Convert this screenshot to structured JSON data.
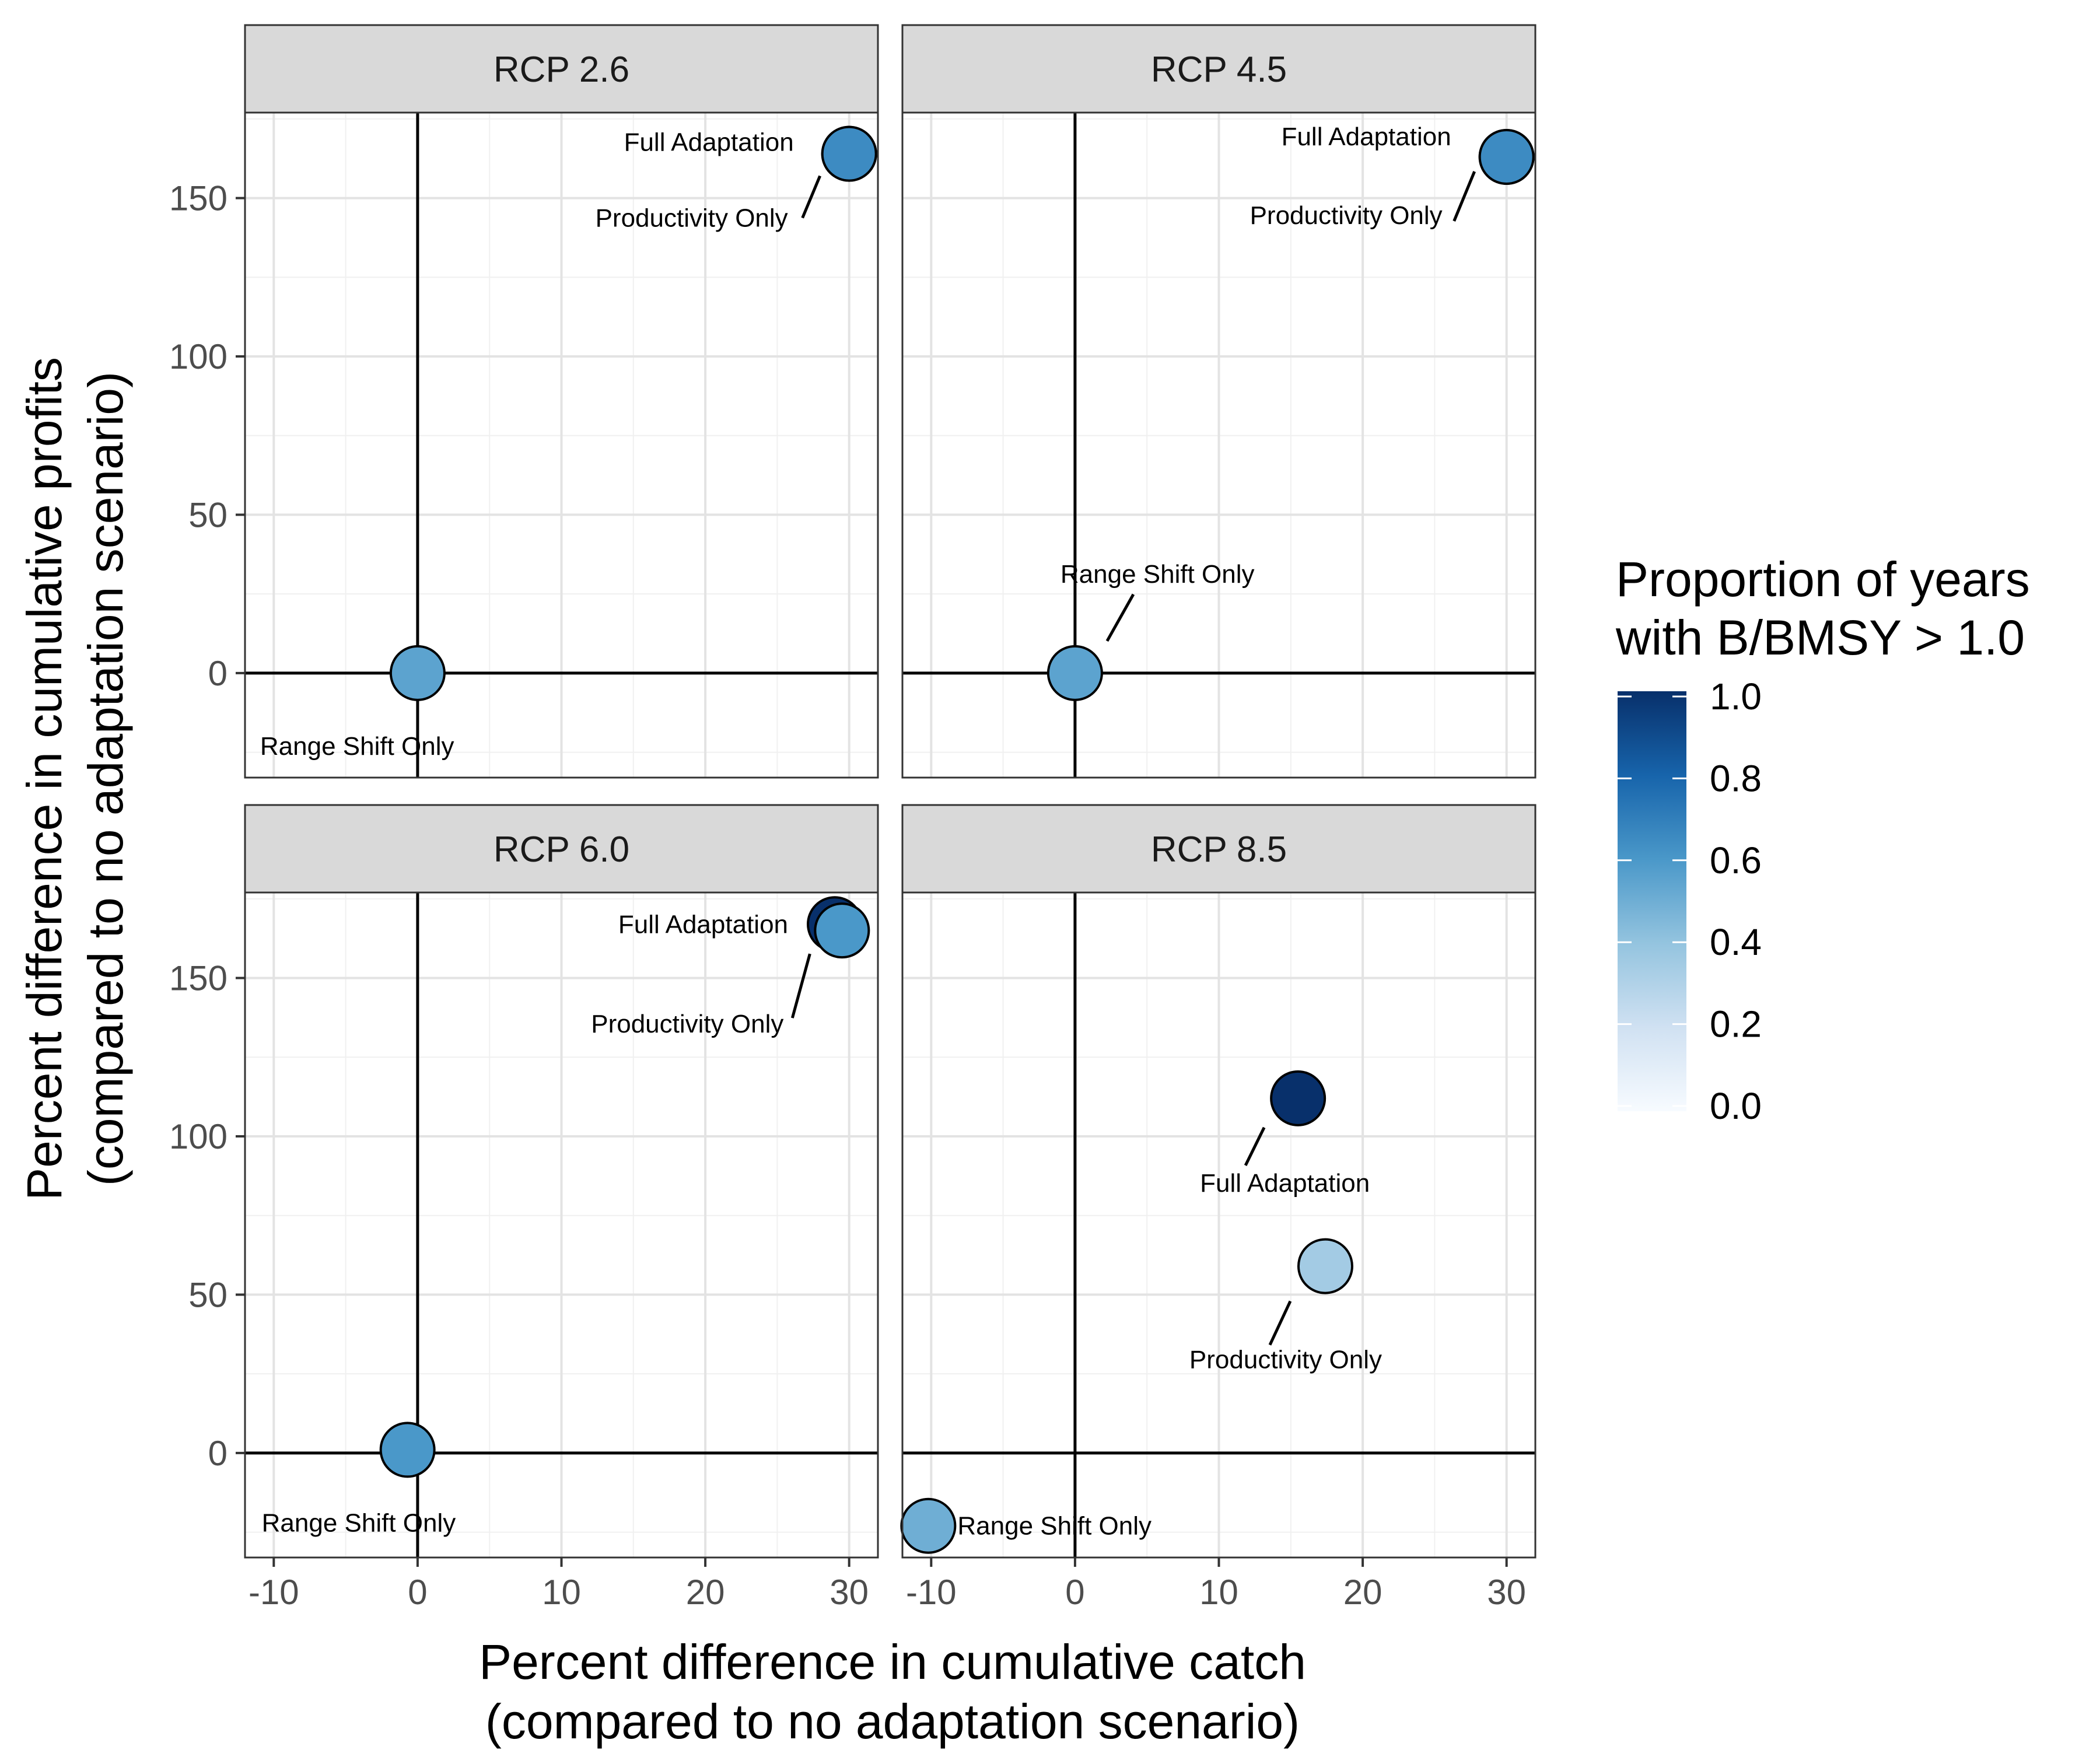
{
  "chart_data": {
    "type": "scatter",
    "facet_layout": "2x2 grid",
    "xlabel": [
      "Percent difference in cumulative catch",
      "(compared to no adaptation scenario)"
    ],
    "ylabel": [
      "Percent difference in cumulative profits",
      "(compared to no adaptation scenario)"
    ],
    "xlim": [
      -12,
      32
    ],
    "ylim": [
      -33,
      177
    ],
    "x_ticks": [
      -10,
      0,
      10,
      20,
      30
    ],
    "y_ticks": [
      0,
      50,
      100,
      150
    ],
    "grid": true,
    "reference_lines": {
      "x": 0,
      "y": 0
    },
    "legend": {
      "title": [
        "Proportion of years",
        "with B/BMSY > 1.0"
      ],
      "placement": "right",
      "type": "continuous colorbar",
      "range": [
        0,
        1
      ],
      "ticks": [
        "0.0",
        "0.2",
        "0.4",
        "0.6",
        "0.8",
        "1.0"
      ],
      "low_color": "#f7fbff",
      "high_color": "#08306b"
    },
    "panels": [
      {
        "title": "RCP 2.6",
        "points": [
          {
            "label": "Range Shift Only",
            "x": 0,
            "y": 0,
            "value": 0.55
          },
          {
            "label": "Productivity Only",
            "x": 30,
            "y": 164,
            "value": 0.65
          },
          {
            "label": "Full Adaptation",
            "x": 30,
            "y": 164,
            "value": 0.65
          }
        ]
      },
      {
        "title": "RCP 4.5",
        "points": [
          {
            "label": "Range Shift Only",
            "x": 0,
            "y": 0,
            "value": 0.55
          },
          {
            "label": "Productivity Only",
            "x": 30,
            "y": 163,
            "value": 0.65
          },
          {
            "label": "Full Adaptation",
            "x": 30,
            "y": 163,
            "value": 0.65
          }
        ]
      },
      {
        "title": "RCP 6.0",
        "points": [
          {
            "label": "Range Shift Only",
            "x": -0.7,
            "y": 1,
            "value": 0.6
          },
          {
            "label": "Full Adaptation",
            "x": 29,
            "y": 167,
            "value": 1.0
          },
          {
            "label": "Productivity Only",
            "x": 29.5,
            "y": 165,
            "value": 0.6
          }
        ]
      },
      {
        "title": "RCP 8.5",
        "points": [
          {
            "label": "Range Shift Only",
            "x": -10.2,
            "y": -23,
            "value": 0.5
          },
          {
            "label": "Full Adaptation",
            "x": 15.5,
            "y": 112,
            "value": 1.0
          },
          {
            "label": "Productivity Only",
            "x": 17.4,
            "y": 59,
            "value": 0.35
          }
        ]
      }
    ]
  }
}
